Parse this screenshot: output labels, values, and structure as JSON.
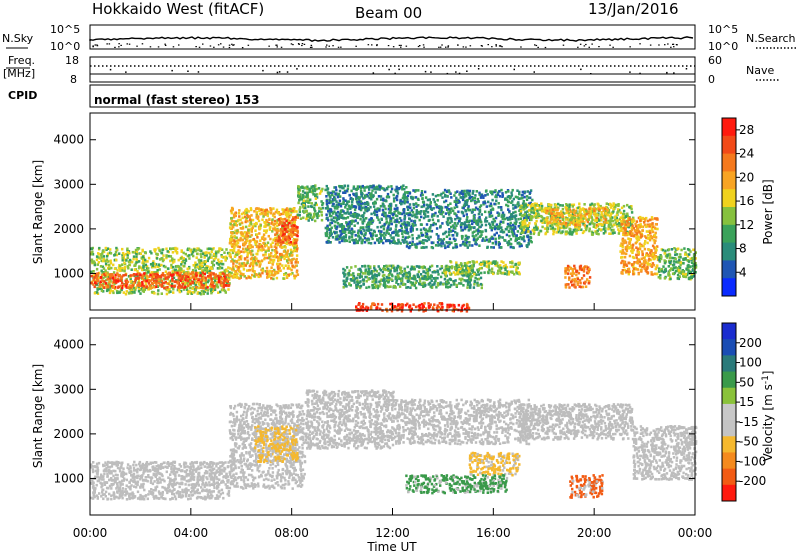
{
  "header": {
    "station": "Hokkaido West (fitACF)",
    "beam": "Beam 00",
    "date": "13/Jan/2016"
  },
  "nsky_panel": {
    "left_label": "N.Sky",
    "left_top_tick": "10^5",
    "left_bottom_tick": "10^0",
    "right_top_tick": "10^5",
    "right_bottom_tick": "10^0",
    "right_label": "N.Search"
  },
  "freq_panel": {
    "left_label_1": "Freq.",
    "left_label_2": "[MHz]",
    "left_top_tick": "18",
    "left_bottom_tick": "8",
    "right_top_tick": "60",
    "right_bottom_tick": "0",
    "right_label": "Nave"
  },
  "cpid_panel": {
    "left_label": "CPID",
    "mode": "normal (fast stereo) 153"
  },
  "colors": {
    "power_scale": [
      "#0a2bff",
      "#1f56b4",
      "#2a8c7a",
      "#3aa25a",
      "#86c13e",
      "#f0d21e",
      "#f8a423",
      "#f5791d",
      "#f24a18",
      "#ff1a0e"
    ],
    "velocity_scale": [
      "#1a2ccf",
      "#1a4db4",
      "#2a7a7a",
      "#3a9a4a",
      "#8ac23a",
      "#c8c8c8",
      "#c4c4c4",
      "#f5b82e",
      "#f58a1d",
      "#f25b14",
      "#ff1a0e"
    ],
    "ground_scatter": "#bdbdbd",
    "axis": "#000000"
  },
  "chart_data": [
    {
      "type": "heatmap",
      "name": "power",
      "ylabel": "Slant Range [km]",
      "y_ticks": [
        "1000",
        "2000",
        "3000",
        "4000"
      ],
      "ylim": [
        180,
        4600
      ],
      "x_ticks": [
        "00:00",
        "04:00",
        "08:00",
        "12:00",
        "16:00",
        "20:00",
        "00:00"
      ],
      "xlim_hours": [
        0,
        24
      ],
      "colorbar": {
        "label": "Power [dB]",
        "ticks": [
          "4",
          "8",
          "12",
          "16",
          "20",
          "24",
          "28"
        ],
        "range": [
          0,
          30
        ]
      },
      "regions": [
        {
          "x0": 0.0,
          "x1": 5.5,
          "y0": 560,
          "y1": 1600,
          "level": 14
        },
        {
          "x0": 0.0,
          "x1": 5.5,
          "y0": 700,
          "y1": 1050,
          "level": 24
        },
        {
          "x0": 5.5,
          "x1": 8.2,
          "y0": 900,
          "y1": 2500,
          "level": 18
        },
        {
          "x0": 7.4,
          "x1": 8.2,
          "y0": 1700,
          "y1": 2300,
          "level": 24
        },
        {
          "x0": 8.2,
          "x1": 9.2,
          "y0": 2200,
          "y1": 3000,
          "level": 12
        },
        {
          "x0": 9.3,
          "x1": 12.5,
          "y0": 1700,
          "y1": 3000,
          "level": 8
        },
        {
          "x0": 10.0,
          "x1": 15.5,
          "y0": 700,
          "y1": 1200,
          "level": 10
        },
        {
          "x0": 12.5,
          "x1": 17.5,
          "y0": 1600,
          "y1": 2900,
          "level": 8
        },
        {
          "x0": 14.0,
          "x1": 17.0,
          "y0": 1000,
          "y1": 1300,
          "level": 14
        },
        {
          "x0": 17.0,
          "x1": 21.5,
          "y0": 1900,
          "y1": 2600,
          "level": 14
        },
        {
          "x0": 18.0,
          "x1": 20.5,
          "y0": 2100,
          "y1": 2500,
          "level": 18
        },
        {
          "x0": 18.8,
          "x1": 19.8,
          "y0": 700,
          "y1": 1200,
          "level": 22
        },
        {
          "x0": 21.0,
          "x1": 22.5,
          "y0": 1000,
          "y1": 2300,
          "level": 20
        },
        {
          "x0": 22.5,
          "x1": 24.0,
          "y0": 900,
          "y1": 1600,
          "level": 12
        },
        {
          "x0": 10.5,
          "x1": 15.0,
          "y0": 180,
          "y1": 360,
          "level": 26
        }
      ]
    },
    {
      "type": "heatmap",
      "name": "velocity",
      "ylabel": "Slant Range [km]",
      "y_ticks": [
        "1000",
        "2000",
        "3000",
        "4000"
      ],
      "ylim": [
        180,
        4600
      ],
      "x_ticks": [
        "00:00",
        "04:00",
        "08:00",
        "12:00",
        "16:00",
        "20:00",
        "00:00"
      ],
      "xlim_hours": [
        0,
        24
      ],
      "xlabel": "Time UT",
      "colorbar": {
        "label_main": "Velocity [m s",
        "label_sup": "-1",
        "label_end": "]",
        "ticks": [
          "200",
          "100",
          "50",
          "15",
          "-15",
          "-50",
          "-100",
          "-200"
        ],
        "range": [
          -250,
          250
        ]
      },
      "regions": [
        {
          "x0": 0.0,
          "x1": 5.5,
          "y0": 560,
          "y1": 1400,
          "level": 0
        },
        {
          "x0": 5.5,
          "x1": 8.5,
          "y0": 800,
          "y1": 2700,
          "level": 0
        },
        {
          "x0": 6.5,
          "x1": 8.2,
          "y0": 1400,
          "y1": 2200,
          "level": -60
        },
        {
          "x0": 8.5,
          "x1": 12.0,
          "y0": 1700,
          "y1": 3000,
          "level": 0
        },
        {
          "x0": 12.0,
          "x1": 17.5,
          "y0": 1800,
          "y1": 2800,
          "level": 0
        },
        {
          "x0": 15.0,
          "x1": 17.0,
          "y0": 1100,
          "y1": 1600,
          "level": -60
        },
        {
          "x0": 17.0,
          "x1": 21.5,
          "y0": 1900,
          "y1": 2700,
          "level": 0
        },
        {
          "x0": 19.0,
          "x1": 20.3,
          "y0": 600,
          "y1": 1100,
          "level": -150
        },
        {
          "x0": 21.5,
          "x1": 24.0,
          "y0": 1000,
          "y1": 2200,
          "level": 0
        },
        {
          "x0": 12.5,
          "x1": 16.5,
          "y0": 700,
          "y1": 1100,
          "level": 30
        }
      ]
    }
  ]
}
